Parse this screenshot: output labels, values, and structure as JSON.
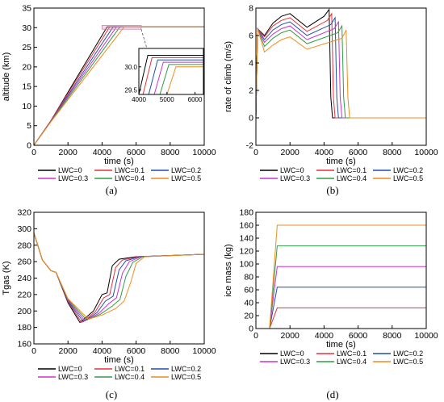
{
  "colors": {
    "LWC=0": "#000000",
    "LWC=0.1": "#e8313a",
    "LWC=0.2": "#1f4fa8",
    "LWC=0.3": "#cc33cc",
    "LWC=0.4": "#2e9e44",
    "LWC=0.5": "#f28c1c"
  },
  "panel_labels": [
    "(a)",
    "(b)",
    "(c)",
    "(d)"
  ],
  "chart_data": [
    {
      "panel": "(a)",
      "type": "line",
      "xlabel": "time (s)",
      "ylabel": "altitude (km)",
      "xlim": [
        0,
        10000
      ],
      "ylim": [
        0,
        35
      ],
      "xticks": [
        "0",
        "2000",
        "4000",
        "6000",
        "8000",
        "10000"
      ],
      "yticks": [
        "0",
        "5",
        "10",
        "15",
        "20",
        "25",
        "30",
        "35"
      ],
      "legend": [
        "LWC=0",
        "LWC=0.1",
        "LWC=0.2",
        "LWC=0.3",
        "LWC=0.4",
        "LWC=0.5"
      ],
      "legend_position": "bottom",
      "series": [
        {
          "name": "LWC=0",
          "x": [
            0,
            1000,
            4300,
            10000
          ],
          "y": [
            0,
            6.3,
            30.2,
            30.2
          ]
        },
        {
          "name": "LWC=0.1",
          "x": [
            0,
            1000,
            4450,
            10000
          ],
          "y": [
            0,
            6.3,
            30.2,
            30.2
          ]
        },
        {
          "name": "LWC=0.2",
          "x": [
            0,
            1000,
            4650,
            10000
          ],
          "y": [
            0,
            6.2,
            30.2,
            30.2
          ]
        },
        {
          "name": "LWC=0.3",
          "x": [
            0,
            1000,
            4850,
            10000
          ],
          "y": [
            0,
            6.2,
            30.2,
            30.2
          ]
        },
        {
          "name": "LWC=0.4",
          "x": [
            0,
            1000,
            5050,
            10000
          ],
          "y": [
            0,
            6.1,
            30.2,
            30.2
          ]
        },
        {
          "name": "LWC=0.5",
          "x": [
            0,
            1000,
            5300,
            10000
          ],
          "y": [
            0,
            6.0,
            30.2,
            30.2
          ]
        }
      ],
      "inset": {
        "xlim": [
          4000,
          6300
        ],
        "ylim": [
          29.4,
          30.4
        ],
        "xticks": [
          "4000",
          "5000",
          "6000"
        ],
        "yticks": [
          "29.5",
          "30.0"
        ],
        "series": [
          {
            "name": "LWC=0",
            "x": [
              4000,
              4320,
              6300
            ],
            "y": [
              29.4,
              30.25,
              30.25
            ]
          },
          {
            "name": "LWC=0.1",
            "x": [
              4150,
              4470,
              6300
            ],
            "y": [
              29.4,
              30.2,
              30.2
            ]
          },
          {
            "name": "LWC=0.2",
            "x": [
              4350,
              4670,
              6300
            ],
            "y": [
              29.4,
              30.15,
              30.15
            ]
          },
          {
            "name": "LWC=0.3",
            "x": [
              4550,
              4870,
              6300
            ],
            "y": [
              29.4,
              30.1,
              30.1
            ]
          },
          {
            "name": "LWC=0.4",
            "x": [
              4750,
              5070,
              6300
            ],
            "y": [
              29.4,
              30.05,
              30.05
            ]
          },
          {
            "name": "LWC=0.5",
            "x": [
              5000,
              5320,
              6300
            ],
            "y": [
              29.4,
              30.0,
              30.0
            ]
          }
        ]
      }
    },
    {
      "panel": "(b)",
      "type": "line",
      "xlabel": "time (s)",
      "ylabel": "rate of climb (m/s)",
      "xlim": [
        0,
        10000
      ],
      "ylim": [
        -2,
        8
      ],
      "xticks": [
        "0",
        "2000",
        "4000",
        "6000",
        "8000",
        "10000"
      ],
      "yticks": [
        "-2",
        "0",
        "2",
        "4",
        "6",
        "8"
      ],
      "legend": [
        "LWC=0",
        "LWC=0.1",
        "LWC=0.2",
        "LWC=0.3",
        "LWC=0.4",
        "LWC=0.5"
      ],
      "legend_position": "bottom",
      "series": [
        {
          "name": "LWC=0",
          "x": [
            0,
            100,
            500,
            1000,
            1500,
            2000,
            3000,
            4000,
            4300,
            4400,
            4500,
            5000,
            10000
          ],
          "y": [
            0,
            6.5,
            6.0,
            6.9,
            7.4,
            7.6,
            6.6,
            7.4,
            7.9,
            1.5,
            0,
            0,
            0
          ]
        },
        {
          "name": "LWC=0.1",
          "x": [
            0,
            100,
            500,
            1000,
            1500,
            2000,
            3000,
            4200,
            4450,
            4550,
            4650,
            5100,
            10000
          ],
          "y": [
            0,
            6.5,
            5.9,
            6.7,
            7.1,
            7.3,
            6.3,
            7.1,
            7.6,
            1.5,
            0,
            0,
            0
          ]
        },
        {
          "name": "LWC=0.2",
          "x": [
            0,
            100,
            500,
            1000,
            1500,
            2000,
            3000,
            4400,
            4650,
            4750,
            4850,
            5300,
            10000
          ],
          "y": [
            0,
            6.5,
            5.7,
            6.4,
            6.8,
            7.0,
            6.0,
            6.8,
            7.3,
            1.5,
            0,
            0,
            0
          ]
        },
        {
          "name": "LWC=0.3",
          "x": [
            0,
            100,
            500,
            1000,
            1500,
            2000,
            3000,
            4600,
            4850,
            4950,
            5050,
            5500,
            10000
          ],
          "y": [
            0,
            6.5,
            5.5,
            6.1,
            6.5,
            6.7,
            5.7,
            6.5,
            7.0,
            1.5,
            0,
            0,
            0
          ]
        },
        {
          "name": "LWC=0.4",
          "x": [
            0,
            100,
            500,
            1000,
            1500,
            2000,
            3000,
            4800,
            5050,
            5150,
            5250,
            5700,
            10000
          ],
          "y": [
            0,
            6.5,
            5.2,
            5.8,
            6.2,
            6.4,
            5.4,
            6.2,
            6.7,
            1.5,
            0,
            0,
            0
          ]
        },
        {
          "name": "LWC=0.5",
          "x": [
            0,
            100,
            500,
            1000,
            1500,
            2000,
            3000,
            5050,
            5300,
            5400,
            5500,
            5950,
            10000
          ],
          "y": [
            0,
            6.5,
            4.8,
            5.3,
            5.7,
            5.9,
            5.0,
            5.8,
            6.4,
            1.5,
            0,
            0,
            0
          ]
        }
      ]
    },
    {
      "panel": "(c)",
      "type": "line",
      "xlabel": "time (s)",
      "ylabel": "Tgas (K)",
      "xlim": [
        0,
        10000
      ],
      "ylim": [
        160,
        320
      ],
      "xticks": [
        "0",
        "2000",
        "4000",
        "6000",
        "8000",
        "10000"
      ],
      "yticks": [
        "160",
        "180",
        "200",
        "220",
        "240",
        "260",
        "280",
        "300",
        "320"
      ],
      "legend": [
        "LWC=0",
        "LWC=0.1",
        "LWC=0.2",
        "LWC=0.3",
        "LWC=0.4",
        "LWC=0.5"
      ],
      "legend_position": "bottom",
      "series": [
        {
          "name": "LWC=0",
          "x": [
            0,
            500,
            1000,
            1300,
            2000,
            2700,
            3500,
            4000,
            4300,
            4600,
            5000,
            6000,
            10000
          ],
          "y": [
            295,
            262,
            249,
            247,
            210,
            186,
            200,
            220,
            222,
            255,
            263,
            266,
            269
          ]
        },
        {
          "name": "LWC=0.1",
          "x": [
            0,
            500,
            1000,
            1300,
            2000,
            2800,
            3600,
            4100,
            4450,
            4800,
            5200,
            6100,
            10000
          ],
          "y": [
            295,
            262,
            249,
            247,
            211,
            186,
            199,
            216,
            220,
            253,
            262,
            266,
            269
          ]
        },
        {
          "name": "LWC=0.2",
          "x": [
            0,
            500,
            1000,
            1300,
            2000,
            2900,
            3700,
            4200,
            4650,
            5000,
            5400,
            6200,
            10000
          ],
          "y": [
            295,
            262,
            249,
            247,
            212,
            187,
            198,
            212,
            218,
            250,
            261,
            266,
            269
          ]
        },
        {
          "name": "LWC=0.3",
          "x": [
            0,
            500,
            1000,
            1300,
            2000,
            3000,
            3800,
            4400,
            4850,
            5200,
            5600,
            6300,
            10000
          ],
          "y": [
            295,
            262,
            249,
            247,
            213,
            188,
            197,
            209,
            216,
            246,
            260,
            266,
            269
          ]
        },
        {
          "name": "LWC=0.4",
          "x": [
            0,
            500,
            1000,
            1300,
            2000,
            3100,
            3900,
            4600,
            5050,
            5400,
            5800,
            6400,
            10000
          ],
          "y": [
            295,
            262,
            249,
            247,
            214,
            189,
            196,
            206,
            214,
            242,
            259,
            266,
            269
          ]
        },
        {
          "name": "LWC=0.5",
          "x": [
            0,
            500,
            1000,
            1300,
            2000,
            3200,
            4000,
            4800,
            5300,
            5700,
            6000,
            6500,
            10000
          ],
          "y": [
            295,
            262,
            249,
            247,
            215,
            190,
            195,
            203,
            212,
            236,
            258,
            266,
            269
          ]
        }
      ]
    },
    {
      "panel": "(d)",
      "type": "line",
      "xlabel": "time (s)",
      "ylabel": "ice mass (kg)",
      "xlim": [
        0,
        10000
      ],
      "ylim": [
        0,
        180
      ],
      "xticks": [
        "0",
        "2000",
        "4000",
        "6000",
        "8000",
        "10000"
      ],
      "yticks": [
        "0",
        "20",
        "40",
        "60",
        "80",
        "100",
        "120",
        "140",
        "160",
        "180"
      ],
      "legend": [
        "LWC=0",
        "LWC=0.1",
        "LWC=0.2",
        "LWC=0.3",
        "LWC=0.4",
        "LWC=0.5"
      ],
      "legend_position": "bottom",
      "series": [
        {
          "name": "LWC=0",
          "x": [
            0,
            10000
          ],
          "y": [
            0,
            0
          ]
        },
        {
          "name": "LWC=0.1",
          "x": [
            0,
            800,
            1250,
            10000
          ],
          "y": [
            0,
            0,
            32,
            32
          ]
        },
        {
          "name": "LWC=0.2",
          "x": [
            0,
            800,
            1250,
            10000
          ],
          "y": [
            0,
            0,
            64,
            64
          ]
        },
        {
          "name": "LWC=0.3",
          "x": [
            0,
            800,
            1250,
            10000
          ],
          "y": [
            0,
            0,
            96,
            96
          ]
        },
        {
          "name": "LWC=0.4",
          "x": [
            0,
            800,
            1250,
            10000
          ],
          "y": [
            0,
            0,
            128,
            128
          ]
        },
        {
          "name": "LWC=0.5",
          "x": [
            0,
            800,
            1250,
            10000
          ],
          "y": [
            0,
            0,
            160,
            160
          ]
        }
      ]
    }
  ]
}
